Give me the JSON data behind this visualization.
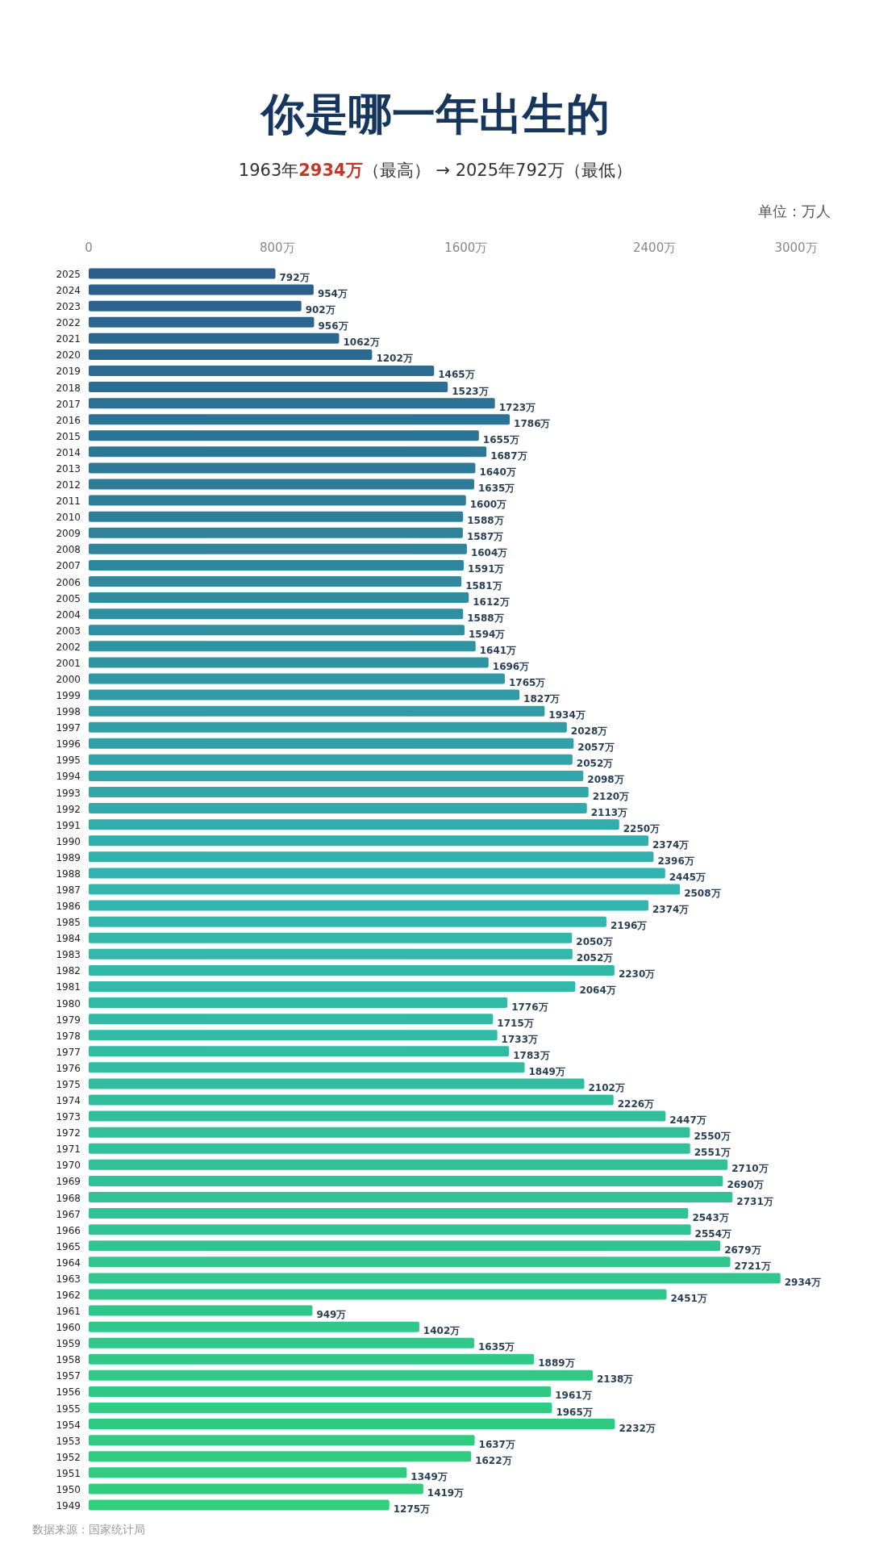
{
  "chart_data": {
    "type": "bar",
    "orientation": "horizontal",
    "title": "你是哪一年出生的",
    "subtitle": "1963年**2934万**（最高） → 2025年792万（最低）",
    "annotations": [
      "单位：万人",
      "数据来源：国家统计局"
    ],
    "xlim": [
      0,
      3000
    ],
    "xticks": [
      0,
      {
        "value": 800,
        "label": "800万"
      },
      {
        "value": 1600,
        "label": "1600万"
      },
      {
        "value": 2400,
        "label": "2400万"
      },
      {
        "value": 3000,
        "label": "3000万"
      }
    ],
    "categories": [
      "2025",
      "2024",
      "2023",
      "2022",
      "2021",
      "2020",
      "2019",
      "2018",
      "2017",
      "2016",
      "2015",
      "2014",
      "2013",
      "2012",
      "2011",
      "2010",
      "2009",
      "2008",
      "2007",
      "2006",
      "2005",
      "2004",
      "2003",
      "2002",
      "2001",
      "2000",
      "1999",
      "1998",
      "1997",
      "1996",
      "1995",
      "1994",
      "1993",
      "1992",
      "1991",
      "1990",
      "1989",
      "1988",
      "1987",
      "1986",
      "1985",
      "1984",
      "1983",
      "1982",
      "1981",
      "1980",
      "1979",
      "1978",
      "1977",
      "1976",
      "1975",
      "1974",
      "1973",
      "1972",
      "1971",
      "1970",
      "1969",
      "1968",
      "1967",
      "1966",
      "1965",
      "1964",
      "1963",
      "1962",
      "1961",
      "1960",
      "1959",
      "1958",
      "1957",
      "1956",
      "1955",
      "1954",
      "1953",
      "1952",
      "1951",
      "1950",
      "1949"
    ],
    "values": [
      792,
      954,
      902,
      956,
      1062,
      1202,
      1465,
      1523,
      1723,
      1786,
      1655,
      1687,
      1640,
      1635,
      1600,
      1588,
      1587,
      1604,
      1591,
      1581,
      1612,
      1588,
      1594,
      1641,
      1696,
      1765,
      1827,
      1934,
      2028,
      2057,
      2052,
      2098,
      2120,
      2113,
      2250,
      2374,
      2396,
      2445,
      2508,
      2374,
      2196,
      2050,
      2052,
      2230,
      2064,
      1776,
      1715,
      1733,
      1783,
      1849,
      2102,
      2226,
      2447,
      2550,
      2551,
      2710,
      2690,
      2731,
      2543,
      2554,
      2679,
      2721,
      2934,
      2451,
      949,
      1402,
      1635,
      1889,
      2138,
      1961,
      1965,
      2232,
      1637,
      1622,
      1349,
      1419,
      1275
    ],
    "value_labels": [
      "792万",
      "954万",
      "902万",
      "956万",
      "1062万",
      "1202万",
      "1465万",
      "1523万",
      "1723万",
      "1786万",
      "1655万",
      "1687万",
      "1640万",
      "1635万",
      "1600万",
      "1588万",
      "1587万",
      "1604万",
      "1591万",
      "1581万",
      "1612万",
      "1588万",
      "1594万",
      "1641万",
      "1696万",
      "1765万",
      "1827万",
      "1934万",
      "2028万",
      "2057万",
      "2052万",
      "2098万",
      "2120万",
      "2113万",
      "2250万",
      "2374万",
      "2396万",
      "2445万",
      "2508万",
      "2374万",
      "2196万",
      "2050万",
      "2052万",
      "2230万",
      "2064万",
      "1776万",
      "1715万",
      "1733万",
      "1783万",
      "1849万",
      "2102万",
      "2226万",
      "2447万",
      "2550万",
      "2551万",
      "2710万",
      "2690万",
      "2731万",
      "2543万",
      "2554万",
      "2679万",
      "2721万",
      "2934万",
      "2451万",
      "949万",
      "1402万",
      "1635万",
      "1889万",
      "2138万",
      "1961万",
      "1965万",
      "2232万",
      "1637万",
      "1622万",
      "1349万",
      "1419万",
      "1275万"
    ],
    "colors": [
      "#2b5e8c",
      "#2b608d",
      "#2b638e",
      "#2c658f",
      "#2c6790",
      "#2c6991",
      "#2c6c92",
      "#2c6e93",
      "#2d7094",
      "#2d7395",
      "#2d7596",
      "#2d7796",
      "#2d7997",
      "#2e7c98",
      "#2e7e99",
      "#2e809a",
      "#2e839b",
      "#2e859c",
      "#2f879d",
      "#2f8a9e",
      "#2f8c9f",
      "#2f8ea0",
      "#2f90a1",
      "#3093a2",
      "#3095a3",
      "#3097a4",
      "#309aa5",
      "#309ca6",
      "#319ea7",
      "#31a0a8",
      "#31a3a9",
      "#31a5a9",
      "#31a7aa",
      "#32aaab",
      "#32acac",
      "#32aead",
      "#32b0ae",
      "#32b3af",
      "#33b5b0",
      "#33b6af",
      "#33b6ad",
      "#33b7ac",
      "#33b8ab",
      "#32b8a9",
      "#32b9a8",
      "#32baa6",
      "#32baa5",
      "#32bba4",
      "#32bca2",
      "#32bca1",
      "#32bda0",
      "#32be9e",
      "#32bf9d",
      "#32bf9b",
      "#31c09a",
      "#31c199",
      "#31c197",
      "#31c296",
      "#31c395",
      "#31c393",
      "#31c492",
      "#31c590",
      "#31c58f",
      "#31c68e",
      "#30c78c",
      "#30c78b",
      "#30c88a",
      "#30c988",
      "#30c987",
      "#30ca86",
      "#30cb84",
      "#30cb83",
      "#30cc81",
      "#30cd80",
      "#2fcd7f",
      "#2fce7d",
      "#2fcf7c"
    ]
  }
}
